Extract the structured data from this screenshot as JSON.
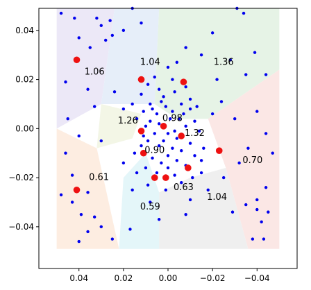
{
  "chart_data": {
    "type": "scatter",
    "title": "",
    "xlabel": "",
    "ylabel": "",
    "xlim": [
      0.058,
      -0.058
    ],
    "ylim": [
      -0.057,
      0.049
    ],
    "x_inverted": true,
    "grid": false,
    "x_ticks": [
      {
        "value": 0.04,
        "label": "0.04"
      },
      {
        "value": 0.02,
        "label": "0.02"
      },
      {
        "value": 0.0,
        "label": "0.00"
      },
      {
        "value": -0.02,
        "label": "−0.02"
      },
      {
        "value": -0.04,
        "label": "−0.04"
      }
    ],
    "y_ticks": [
      {
        "value": 0.04,
        "label": "0.04"
      },
      {
        "value": 0.02,
        "label": "0.02"
      },
      {
        "value": 0.0,
        "label": "0.00"
      },
      {
        "value": -0.02,
        "label": "−0.02"
      },
      {
        "value": -0.04,
        "label": "−0.04"
      }
    ],
    "colors": {
      "samples": "#0000ee",
      "centers": "#ee1111"
    },
    "regions": [
      {
        "color": "#ece8f7",
        "polygon": [
          [
            0.05,
            0.049
          ],
          [
            0.024,
            0.049
          ],
          [
            0.03,
            0.01
          ],
          [
            0.05,
            0.0
          ]
        ]
      },
      {
        "color": "#e6eef9",
        "polygon": [
          [
            0.024,
            0.049
          ],
          [
            0.004,
            0.049
          ],
          [
            0.006,
            0.01
          ],
          [
            0.03,
            0.01
          ]
        ]
      },
      {
        "color": "#e6f3e6",
        "polygon": [
          [
            0.004,
            0.049
          ],
          [
            -0.05,
            0.049
          ],
          [
            -0.05,
            0.024
          ],
          [
            -0.018,
            0.004
          ],
          [
            -0.004,
            0.004
          ],
          [
            0.006,
            0.01
          ]
        ]
      },
      {
        "color": "#fbe7e5",
        "polygon": [
          [
            -0.05,
            0.024
          ],
          [
            -0.05,
            -0.049
          ],
          [
            -0.036,
            -0.049
          ],
          [
            -0.026,
            -0.016
          ],
          [
            -0.018,
            0.004
          ]
        ]
      },
      {
        "color": "#efefef",
        "polygon": [
          [
            -0.026,
            -0.016
          ],
          [
            -0.036,
            -0.049
          ],
          [
            0.004,
            -0.049
          ],
          [
            0.004,
            -0.026
          ],
          [
            -0.01,
            -0.02
          ]
        ]
      },
      {
        "color": "#e4f6f9",
        "polygon": [
          [
            0.004,
            -0.026
          ],
          [
            0.004,
            -0.049
          ],
          [
            0.022,
            -0.049
          ],
          [
            0.02,
            -0.02
          ],
          [
            0.01,
            -0.01
          ]
        ]
      },
      {
        "color": "#fdede1",
        "polygon": [
          [
            0.05,
            0.0
          ],
          [
            0.05,
            -0.049
          ],
          [
            0.022,
            -0.049
          ],
          [
            0.032,
            -0.008
          ]
        ]
      },
      {
        "color": "#f3f6e6",
        "polygon": [
          [
            0.03,
            0.01
          ],
          [
            0.032,
            -0.008
          ],
          [
            0.016,
            -0.004
          ],
          [
            0.012,
            0.006
          ]
        ]
      }
    ],
    "cell_labels": [
      {
        "x": 0.033,
        "y": 0.023,
        "text": "1.06"
      },
      {
        "x": 0.008,
        "y": 0.027,
        "text": "1.04"
      },
      {
        "x": -0.025,
        "y": 0.027,
        "text": "1.36"
      },
      {
        "x": 0.018,
        "y": 0.003,
        "text": "1.26"
      },
      {
        "x": -0.002,
        "y": 0.004,
        "text": "0.98"
      },
      {
        "x": -0.012,
        "y": -0.002,
        "text": "1.32"
      },
      {
        "x": 0.006,
        "y": -0.009,
        "text": "0.90"
      },
      {
        "x": -0.038,
        "y": -0.013,
        "text": "0.70"
      },
      {
        "x": 0.031,
        "y": -0.02,
        "text": "0.61"
      },
      {
        "x": -0.007,
        "y": -0.024,
        "text": "0.63"
      },
      {
        "x": -0.022,
        "y": -0.028,
        "text": "1.04"
      },
      {
        "x": 0.008,
        "y": -0.032,
        "text": "0.59"
      }
    ],
    "series": [
      {
        "kind": "centers",
        "points": [
          [
            0.041,
            0.028
          ],
          [
            0.012,
            0.02
          ],
          [
            -0.007,
            0.019
          ],
          [
            0.012,
            -0.001
          ],
          [
            0.002,
            0.001
          ],
          [
            -0.006,
            -0.003
          ],
          [
            0.011,
            -0.01
          ],
          [
            -0.023,
            -0.009
          ],
          [
            0.041,
            -0.025
          ],
          [
            0.006,
            -0.02
          ],
          [
            0.001,
            -0.02
          ],
          [
            -0.009,
            -0.016
          ]
        ]
      },
      {
        "kind": "samples",
        "points": [
          [
            0.048,
            0.047
          ],
          [
            0.042,
            0.045
          ],
          [
            0.032,
            0.045
          ],
          [
            0.026,
            0.044
          ],
          [
            0.016,
            0.049
          ],
          [
            0.03,
            0.042
          ],
          [
            0.04,
            0.037
          ],
          [
            0.025,
            0.038
          ],
          [
            0.028,
            0.036
          ],
          [
            0.035,
            0.033
          ],
          [
            0.02,
            0.04
          ],
          [
            0.012,
            0.043
          ],
          [
            -0.031,
            0.049
          ],
          [
            -0.034,
            0.047
          ],
          [
            -0.02,
            0.039
          ],
          [
            -0.008,
            0.033
          ],
          [
            -0.015,
            0.03
          ],
          [
            -0.028,
            0.028
          ],
          [
            -0.039,
            0.031
          ],
          [
            -0.044,
            0.022
          ],
          [
            -0.035,
            0.022
          ],
          [
            -0.022,
            0.02
          ],
          [
            0.046,
            0.019
          ],
          [
            0.036,
            0.016
          ],
          [
            0.024,
            0.015
          ],
          [
            0.033,
            0.009
          ],
          [
            0.045,
            0.004
          ],
          [
            0.04,
            -0.003
          ],
          [
            0.03,
            -0.005
          ],
          [
            0.02,
            -0.014
          ],
          [
            0.046,
            -0.01
          ],
          [
            0.043,
            -0.019
          ],
          [
            0.048,
            -0.027
          ],
          [
            0.043,
            -0.03
          ],
          [
            0.036,
            -0.026
          ],
          [
            0.039,
            -0.035
          ],
          [
            0.033,
            -0.036
          ],
          [
            0.03,
            -0.04
          ],
          [
            0.04,
            -0.046
          ],
          [
            0.025,
            -0.045
          ],
          [
            0.036,
            -0.042
          ],
          [
            0.017,
            -0.041
          ],
          [
            0.004,
            -0.037
          ],
          [
            -0.008,
            -0.035
          ],
          [
            -0.01,
            -0.029
          ],
          [
            -0.018,
            -0.025
          ],
          [
            -0.029,
            -0.034
          ],
          [
            -0.035,
            -0.031
          ],
          [
            -0.04,
            -0.033
          ],
          [
            -0.042,
            -0.038
          ],
          [
            -0.043,
            -0.045
          ],
          [
            -0.038,
            -0.045
          ],
          [
            -0.044,
            -0.024
          ],
          [
            -0.047,
            -0.01
          ],
          [
            -0.044,
            -0.002
          ],
          [
            -0.04,
            0.007
          ],
          [
            -0.03,
            0.004
          ],
          [
            -0.036,
            -0.008
          ],
          [
            -0.032,
            -0.014
          ],
          [
            -0.025,
            -0.02
          ],
          [
            -0.04,
            -0.029
          ],
          [
            -0.045,
            -0.034
          ],
          [
            0.0,
            0.025
          ],
          [
            -0.004,
            0.027
          ],
          [
            -0.01,
            0.012
          ],
          [
            0.012,
            0.014
          ],
          [
            0.02,
            0.008
          ],
          [
            0.008,
            -0.03
          ],
          [
            0.016,
            -0.025
          ],
          [
            0.014,
            -0.018
          ],
          [
            -0.015,
            -0.018
          ],
          [
            -0.016,
            -0.008
          ],
          [
            -0.02,
            0.006
          ],
          [
            -0.024,
            0.011
          ],
          [
            0.006,
            0.021
          ],
          [
            0.004,
            0.016
          ],
          [
            -0.003,
            0.015
          ],
          [
            0.002,
            0.013
          ],
          [
            0.008,
            0.01
          ],
          [
            -0.006,
            0.01
          ],
          [
            -0.01,
            0.008
          ],
          [
            0.011,
            0.007
          ],
          [
            0.005,
            0.006
          ],
          [
            -0.002,
            0.007
          ],
          [
            0.014,
            0.004
          ],
          [
            0.008,
            0.003
          ],
          [
            -0.005,
            0.004
          ],
          [
            -0.012,
            0.003
          ],
          [
            0.004,
            0.002
          ],
          [
            0.01,
            0.001
          ],
          [
            -0.008,
            0.001
          ],
          [
            -0.014,
            -0.001
          ],
          [
            0.006,
            -0.002
          ],
          [
            0.0,
            -0.002
          ],
          [
            -0.004,
            -0.004
          ],
          [
            0.002,
            -0.005
          ],
          [
            0.009,
            -0.005
          ],
          [
            -0.01,
            -0.006
          ],
          [
            0.004,
            -0.007
          ],
          [
            -0.002,
            -0.008
          ],
          [
            0.012,
            -0.007
          ],
          [
            -0.006,
            -0.009
          ],
          [
            0.007,
            -0.012
          ],
          [
            0.0,
            -0.011
          ],
          [
            -0.012,
            -0.011
          ],
          [
            0.003,
            -0.014
          ],
          [
            -0.004,
            -0.013
          ],
          [
            0.01,
            -0.016
          ],
          [
            -0.008,
            -0.015
          ],
          [
            0.0,
            -0.016
          ],
          [
            0.005,
            -0.018
          ],
          [
            -0.003,
            -0.019
          ],
          [
            -0.011,
            -0.02
          ],
          [
            0.009,
            -0.023
          ],
          [
            -0.006,
            -0.022
          ],
          [
            0.001,
            -0.025
          ],
          [
            -0.002,
            0.02
          ],
          [
            0.009,
            0.018
          ],
          [
            -0.008,
            0.017
          ],
          [
            0.003,
            0.011
          ],
          [
            -0.013,
            0.009
          ],
          [
            0.016,
            0.01
          ],
          [
            0.015,
            -0.01
          ],
          [
            -0.015,
            -0.013
          ],
          [
            0.007,
            0.008
          ],
          [
            -0.001,
            0.004
          ],
          [
            0.001,
            0.009
          ],
          [
            -0.007,
            0.006
          ],
          [
            0.011,
            -0.003
          ],
          [
            -0.003,
            -0.001
          ]
        ]
      }
    ]
  }
}
